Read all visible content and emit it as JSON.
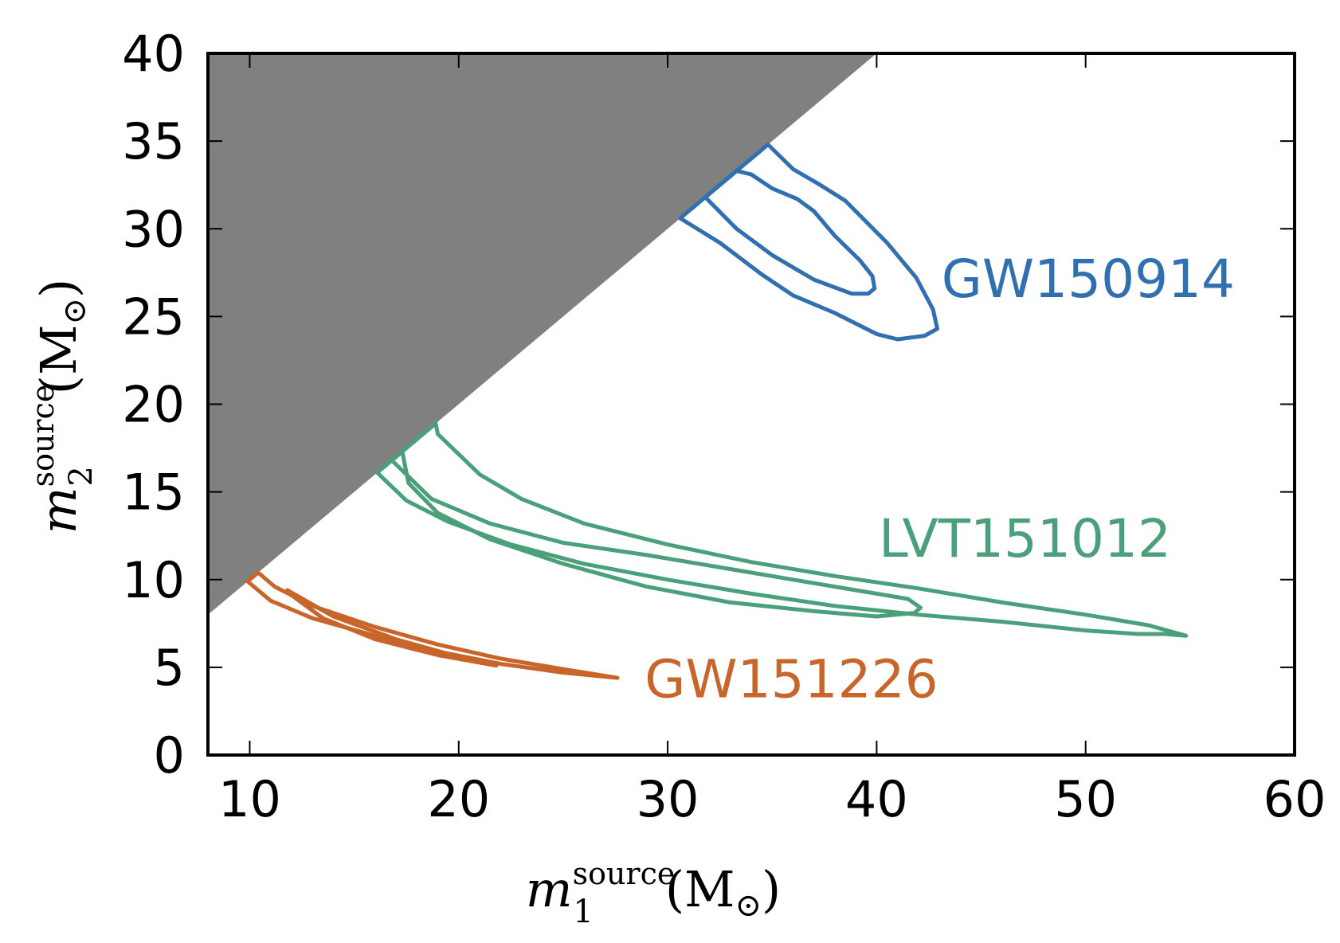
{
  "chart_data": {
    "type": "line",
    "xlabel": {
      "symbol": "m",
      "subscript": "1",
      "superscript": "source",
      "unit": "M",
      "unit_symbol": "⊙"
    },
    "ylabel": {
      "symbol": "m",
      "subscript": "2",
      "superscript": "source",
      "unit": "M",
      "unit_symbol": "⊙"
    },
    "xlim": [
      8,
      60
    ],
    "ylim": [
      0,
      40
    ],
    "xticks": [
      10,
      20,
      30,
      40,
      50,
      60
    ],
    "yticks": [
      0,
      5,
      10,
      15,
      20,
      25,
      30,
      35,
      40
    ],
    "xtick_labels": [
      "10",
      "20",
      "30",
      "40",
      "50",
      "60"
    ],
    "ytick_labels": [
      "0",
      "5",
      "10",
      "15",
      "20",
      "25",
      "30",
      "35",
      "40"
    ],
    "grid": false,
    "excluded_region": {
      "description": "m2 > m1",
      "color": "#808080"
    },
    "series": [
      {
        "name": "GW150914",
        "color": "#3070b0",
        "contours": [
          [
            [
              30.6,
              30.6
            ],
            [
              32.5,
              29.2
            ],
            [
              34.5,
              27.4
            ],
            [
              36,
              26.2
            ],
            [
              38,
              25.2
            ],
            [
              40,
              24
            ],
            [
              41,
              23.7
            ],
            [
              42.3,
              23.9
            ],
            [
              42.9,
              24.3
            ],
            [
              42.7,
              25.4
            ],
            [
              41.9,
              27.2
            ],
            [
              40.5,
              29.2
            ],
            [
              38.5,
              31.6
            ],
            [
              37.3,
              32.5
            ],
            [
              36,
              33.4
            ],
            [
              34.8,
              34.8
            ]
          ],
          [
            [
              31.8,
              31.8
            ],
            [
              33.3,
              30
            ],
            [
              35,
              28.5
            ],
            [
              37,
              27.1
            ],
            [
              38.8,
              26.3
            ],
            [
              39.6,
              26.3
            ],
            [
              39.9,
              26.6
            ],
            [
              39.8,
              27.3
            ],
            [
              39.2,
              28.2
            ],
            [
              38,
              29.6
            ],
            [
              37,
              31
            ],
            [
              36.2,
              31.7
            ],
            [
              35,
              32.3
            ],
            [
              34,
              33.1
            ],
            [
              33.3,
              33.3
            ]
          ]
        ]
      },
      {
        "name": "LVT151012",
        "color": "#4aa07a",
        "contours": [
          [
            [
              16.1,
              16.1
            ],
            [
              17.5,
              14.5
            ],
            [
              19.5,
              13.3
            ],
            [
              22.5,
              12
            ],
            [
              26,
              10.9
            ],
            [
              30,
              10
            ],
            [
              34,
              9.2
            ],
            [
              38,
              8.5
            ],
            [
              42,
              8
            ],
            [
              46,
              7.6
            ],
            [
              50,
              7.1
            ],
            [
              52.5,
              6.9
            ],
            [
              53.8,
              6.9
            ],
            [
              54.8,
              6.8
            ],
            [
              53,
              7.4
            ],
            [
              50,
              8
            ],
            [
              46,
              8.7
            ],
            [
              42,
              9.5
            ],
            [
              38,
              10.2
            ],
            [
              34,
              11
            ],
            [
              30,
              12
            ],
            [
              26,
              13.2
            ],
            [
              23,
              14.6
            ],
            [
              21,
              16
            ],
            [
              19,
              18.3
            ],
            [
              18.9,
              18.9
            ]
          ],
          [
            [
              16.8,
              16.8
            ],
            [
              18.7,
              14.6
            ],
            [
              21.5,
              13.2
            ],
            [
              25,
              12.1
            ],
            [
              29,
              11.4
            ],
            [
              33,
              10.6
            ],
            [
              36,
              10
            ],
            [
              39,
              9.4
            ],
            [
              41.5,
              8.9
            ],
            [
              42.1,
              8.4
            ],
            [
              41.8,
              8.1
            ],
            [
              40,
              7.9
            ],
            [
              37,
              8.2
            ],
            [
              33,
              8.7
            ],
            [
              29,
              9.6
            ],
            [
              25,
              10.9
            ],
            [
              21.5,
              12.3
            ],
            [
              19,
              13.8
            ],
            [
              17.6,
              15.5
            ],
            [
              17.3,
              17.3
            ]
          ]
        ]
      },
      {
        "name": "GW151226",
        "color": "#c8652a",
        "contours": [
          [
            [
              9.9,
              9.9
            ],
            [
              11,
              8.8
            ],
            [
              13,
              7.8
            ],
            [
              16,
              6.8
            ],
            [
              19,
              5.9
            ],
            [
              22,
              5.2
            ],
            [
              25,
              4.7
            ],
            [
              27.6,
              4.4
            ],
            [
              25,
              4.9
            ],
            [
              22,
              5.5
            ],
            [
              19,
              6.3
            ],
            [
              16,
              7.3
            ],
            [
              13,
              8.5
            ],
            [
              11.2,
              9.6
            ],
            [
              10.4,
              10.4
            ]
          ],
          [
            [
              11.8,
              9.4
            ],
            [
              14,
              7.9
            ],
            [
              17,
              6.6
            ],
            [
              20,
              5.6
            ],
            [
              21.8,
              5.1
            ],
            [
              19,
              5.7
            ],
            [
              16,
              6.6
            ],
            [
              13.5,
              7.8
            ],
            [
              11.9,
              9.2
            ]
          ]
        ]
      }
    ],
    "annotations": [
      {
        "text": "GW150914",
        "x": 43.1,
        "y": 26.1,
        "color": "#3070b0"
      },
      {
        "text": "LVT151012",
        "x": 40.1,
        "y": 11.3,
        "color": "#4aa07a"
      },
      {
        "text": "GW151226",
        "x": 28.9,
        "y": 3.3,
        "color": "#c8652a"
      }
    ]
  }
}
